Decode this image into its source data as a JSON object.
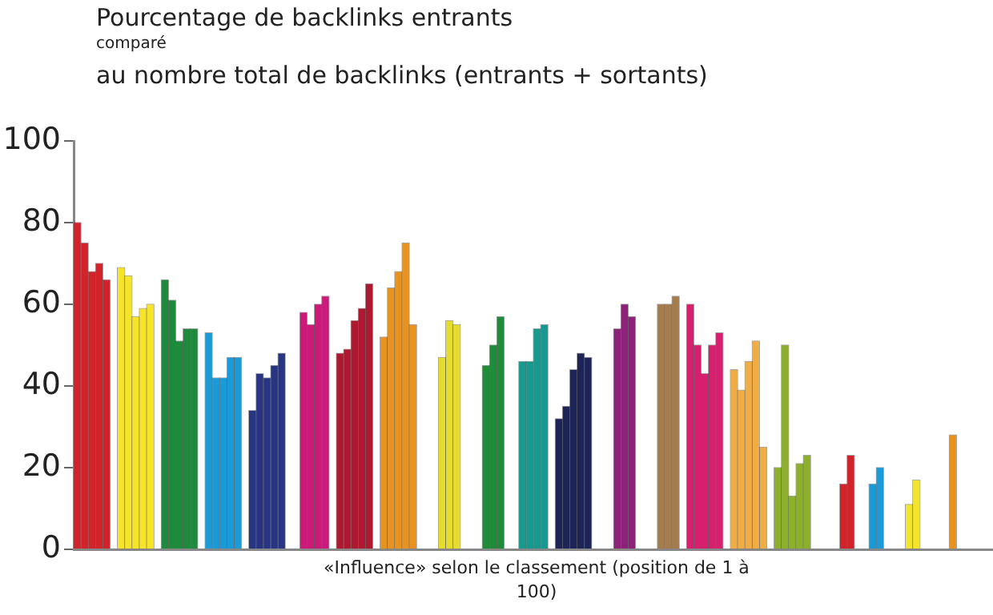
{
  "chart_data": {
    "type": "bar",
    "title": "Pourcentage de backlinks entrants",
    "subtitle": "comparé",
    "annotations": [
      "au nombre total de backlinks (entrants + sortants)"
    ],
    "xlabel": "«Influence» selon le classement (position de 1 à 100)",
    "categories": [
      null,
      null,
      null,
      null,
      null,
      null,
      null,
      null,
      null,
      null,
      null,
      null,
      null,
      null,
      null,
      null,
      null,
      null,
      null,
      null,
      null,
      null,
      null,
      null,
      null,
      null,
      null,
      null,
      null,
      null,
      null,
      null,
      null,
      null,
      null,
      null,
      null,
      null,
      null,
      null,
      null,
      null,
      null,
      null,
      null,
      null,
      null,
      null,
      null,
      null,
      null,
      null,
      null,
      null,
      null,
      null,
      null,
      null,
      null,
      null,
      null,
      null,
      null,
      null,
      null,
      null,
      null,
      null,
      null,
      null,
      null,
      null,
      null,
      null,
      null,
      null,
      null,
      null,
      null,
      null,
      null,
      null,
      null,
      null,
      null,
      null,
      null,
      null,
      null,
      null,
      null,
      null,
      null,
      null,
      null,
      null,
      null,
      null,
      null,
      null,
      null,
      null,
      null,
      null,
      null,
      null,
      null,
      null,
      null,
      null,
      null,
      null,
      null,
      null,
      null,
      null,
      null,
      null,
      null,
      null,
      null,
      null,
      null,
      null,
      null,
      null
    ],
    "values": [
      80,
      75,
      68,
      70,
      66,
      null,
      69,
      67,
      57,
      59,
      60,
      null,
      66,
      61,
      51,
      54,
      54,
      null,
      53,
      42,
      42,
      47,
      47,
      null,
      34,
      43,
      42,
      45,
      48,
      null,
      null,
      58,
      55,
      60,
      62,
      null,
      48,
      49,
      56,
      59,
      65,
      null,
      52,
      64,
      68,
      75,
      55,
      null,
      null,
      null,
      47,
      56,
      55,
      null,
      null,
      null,
      45,
      50,
      57,
      null,
      null,
      46,
      46,
      54,
      55,
      null,
      32,
      35,
      44,
      48,
      47,
      null,
      null,
      null,
      54,
      60,
      57,
      null,
      null,
      null,
      60,
      60,
      62,
      null,
      60,
      50,
      43,
      50,
      53,
      null,
      44,
      39,
      46,
      51,
      25,
      null,
      20,
      50,
      13,
      21,
      23,
      null,
      null,
      null,
      null,
      16,
      23,
      null,
      null,
      16,
      20,
      null,
      null,
      null,
      11,
      17,
      null,
      null,
      null,
      null,
      28,
      null,
      null,
      null,
      null,
      null
    ],
    "colors": [
      "#d2232a",
      "#d2232a",
      "#d2232a",
      "#d2232a",
      "#d2232a",
      "#d2232a",
      "#f5e428",
      "#f5e428",
      "#f5e428",
      "#f5e428",
      "#f5e428",
      "#f5e428",
      "#1e8a3c",
      "#1e8a3c",
      "#1e8a3c",
      "#1e8a3c",
      "#1e8a3c",
      "#1e8a3c",
      "#1a9bd7",
      "#1a9bd7",
      "#1a9bd7",
      "#1a9bd7",
      "#1a9bd7",
      "#1a9bd7",
      "#283583",
      "#283583",
      "#283583",
      "#283583",
      "#283583",
      "#283583",
      "#cc1a7a",
      "#cc1a7a",
      "#cc1a7a",
      "#cc1a7a",
      "#cc1a7a",
      "#cc1a7a",
      "#b0182f",
      "#b0182f",
      "#b0182f",
      "#b0182f",
      "#b0182f",
      "#b0182f",
      "#e8921f",
      "#e8921f",
      "#e8921f",
      "#e8921f",
      "#e8921f",
      "#e8921f",
      "#e6dc2c",
      "#e6dc2c",
      "#e6dc2c",
      "#e6dc2c",
      "#e6dc2c",
      "#e6dc2c",
      "#1f8c3a",
      "#1f8c3a",
      "#1f8c3a",
      "#1f8c3a",
      "#1f8c3a",
      "#1f8c3a",
      "#16998e",
      "#16998e",
      "#16998e",
      "#16998e",
      "#16998e",
      "#16998e",
      "#1c2458",
      "#1c2458",
      "#1c2458",
      "#1c2458",
      "#1c2458",
      "#1c2458",
      "#8e2179",
      "#8e2179",
      "#8e2179",
      "#8e2179",
      "#8e2179",
      "#8e2179",
      "#a67c4a",
      "#a67c4a",
      "#a67c4a",
      "#a67c4a",
      "#a67c4a",
      "#a67c4a",
      "#d61f6e",
      "#d61f6e",
      "#d61f6e",
      "#d61f6e",
      "#d61f6e",
      "#d61f6e",
      "#f0ad45",
      "#f0ad45",
      "#f0ad45",
      "#f0ad45",
      "#f0ad45",
      "#f0ad45",
      "#8db02a",
      "#8db02a",
      "#8db02a",
      "#8db02a",
      "#8db02a",
      "#8db02a",
      "#d2232a",
      "#d2232a",
      "#d2232a",
      "#d2232a",
      "#d2232a",
      "#d2232a",
      "#1a9bd7",
      "#1a9bd7",
      "#1a9bd7",
      "#1a9bd7",
      "#1a9bd7",
      "#1a9bd7",
      "#f3e52a",
      "#f3e52a",
      "#f3e52a",
      "#f3e52a",
      "#f3e52a",
      "#f3e52a",
      "#e8921f",
      "#e8921f",
      "#e8921f",
      "#e8921f",
      "#e8921f",
      "#e8921f"
    ],
    "ylim": [
      0,
      100
    ],
    "yticks": [
      0,
      20,
      40,
      60,
      80,
      100
    ],
    "grid": false,
    "legend": false
  }
}
